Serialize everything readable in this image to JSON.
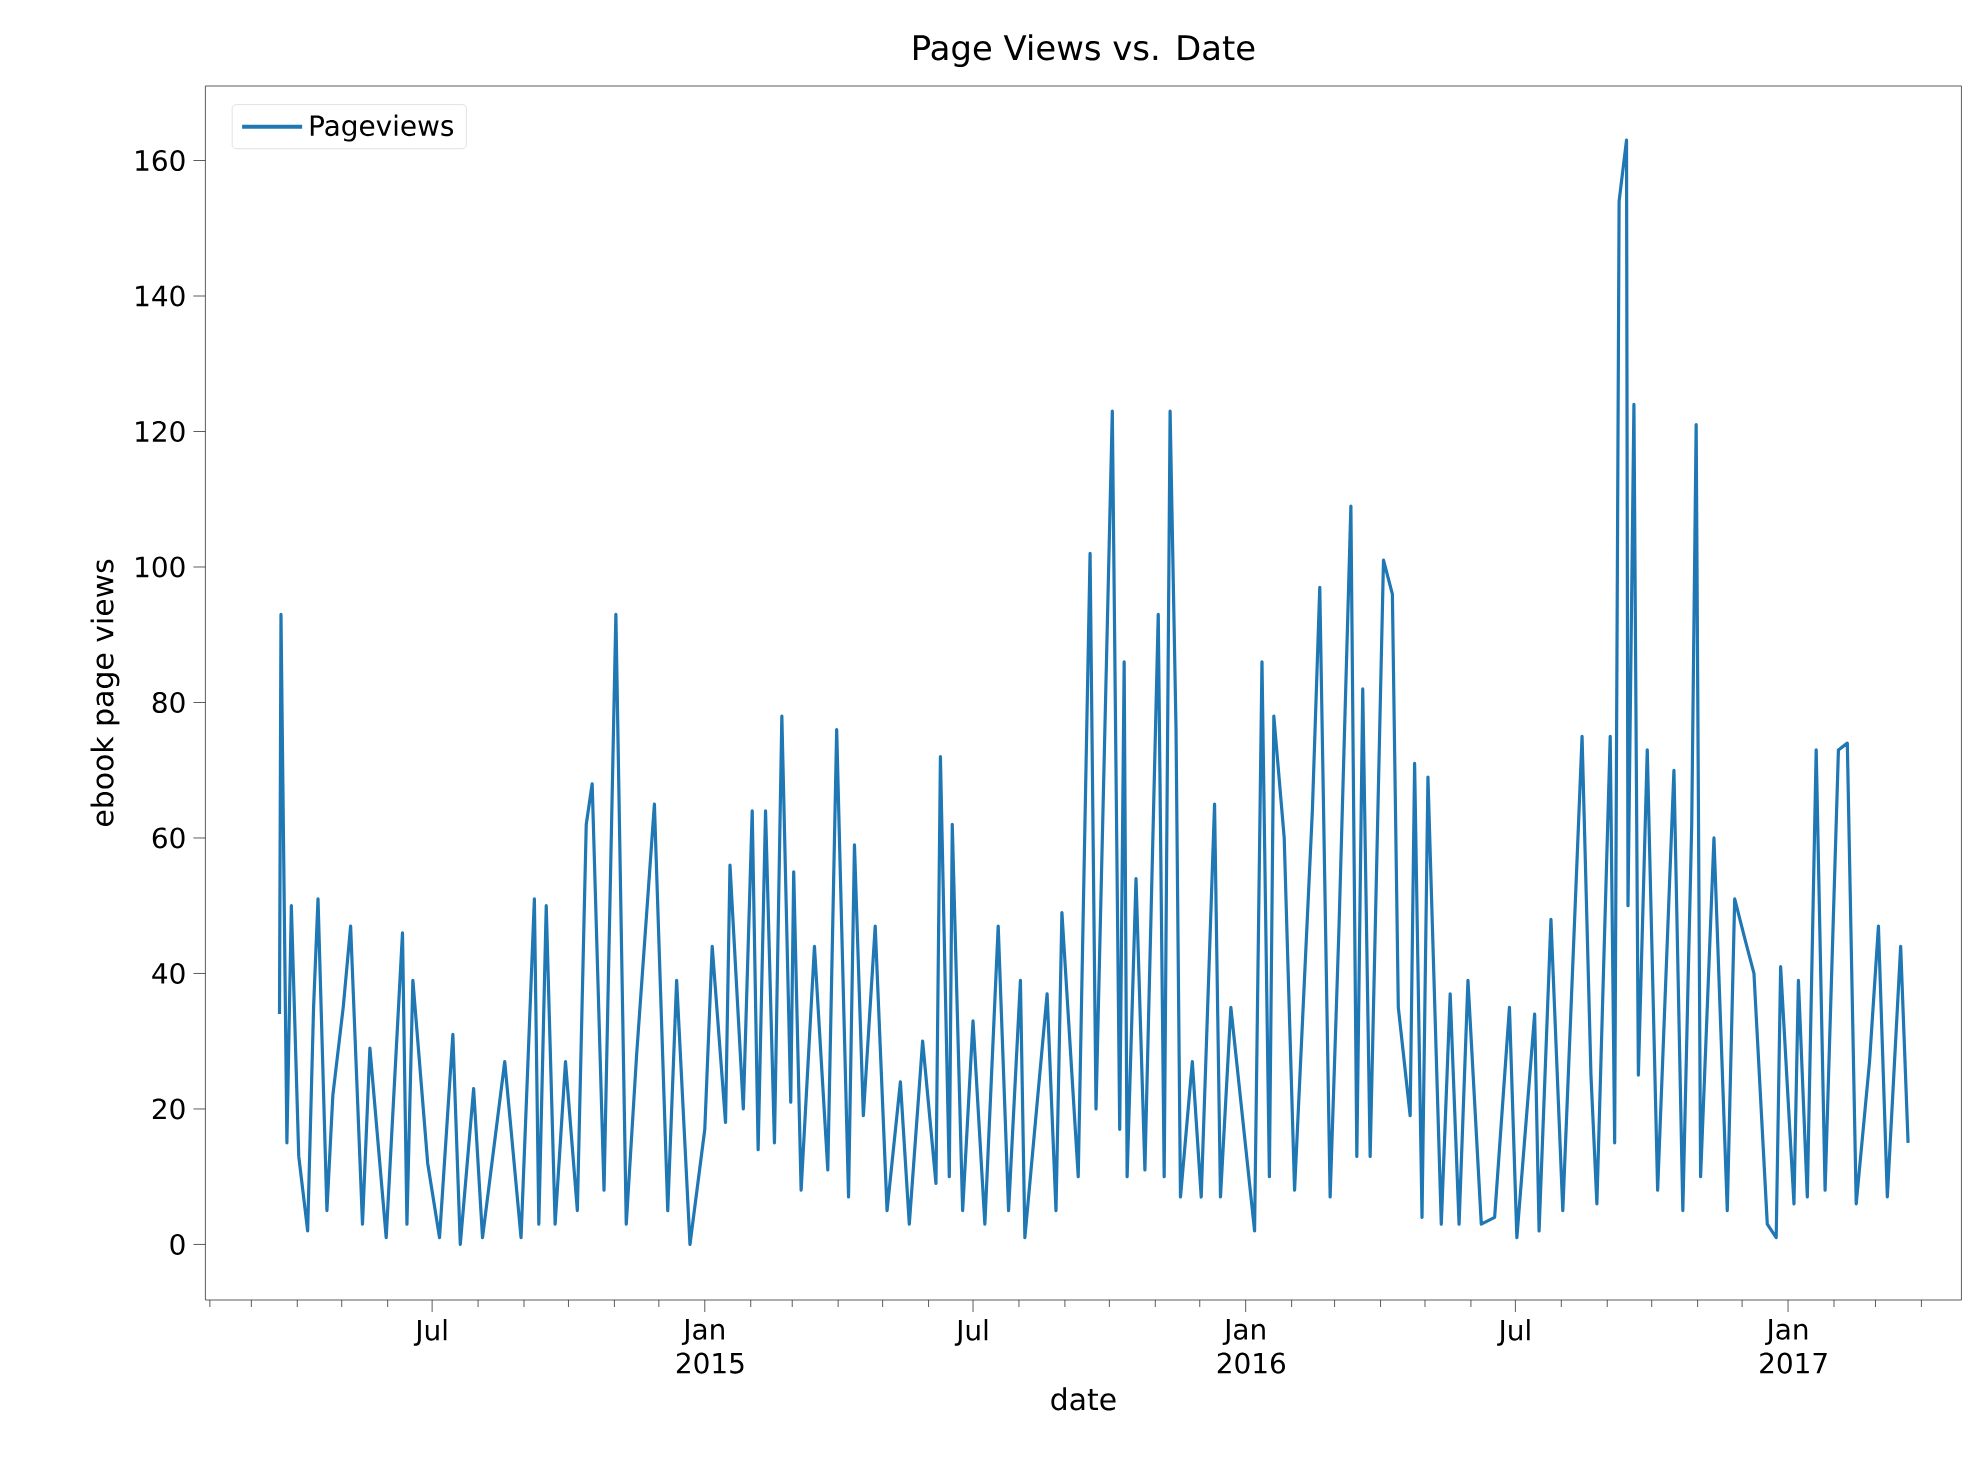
{
  "chart_data": {
    "type": "line",
    "title": "Page Views vs. Date",
    "xlabel": "date",
    "ylabel": "ebook page views",
    "legend": "top left",
    "line_style": "solid",
    "xlim": [
      "2014-01-29",
      "2017-04-28"
    ],
    "xticks": [
      {
        "value": "2014-02",
        "label": null
      },
      {
        "value": "2014-03",
        "label": null
      },
      {
        "value": "2014-04",
        "label": null
      },
      {
        "value": "2014-05",
        "label": null
      },
      {
        "value": "2014-06",
        "label": null
      },
      {
        "value": "2014-07",
        "label": "Jul"
      },
      {
        "value": "2014-08",
        "label": null
      },
      {
        "value": "2014-09",
        "label": null
      },
      {
        "value": "2014-10",
        "label": null
      },
      {
        "value": "2014-11",
        "label": null
      },
      {
        "value": "2014-12",
        "label": null
      },
      {
        "value": "2015-01",
        "label": "Jan 2015"
      },
      {
        "value": "2015-02",
        "label": null
      },
      {
        "value": "2015-03",
        "label": null
      },
      {
        "value": "2015-04",
        "label": null
      },
      {
        "value": "2015-05",
        "label": null
      },
      {
        "value": "2015-06",
        "label": null
      },
      {
        "value": "2015-07",
        "label": "Jul"
      },
      {
        "value": "2015-08",
        "label": null
      },
      {
        "value": "2015-09",
        "label": null
      },
      {
        "value": "2015-10",
        "label": null
      },
      {
        "value": "2015-11",
        "label": null
      },
      {
        "value": "2015-12",
        "label": null
      },
      {
        "value": "2016-01",
        "label": "Jan 2016"
      },
      {
        "value": "2016-02",
        "label": null
      },
      {
        "value": "2016-03",
        "label": null
      },
      {
        "value": "2016-04",
        "label": null
      },
      {
        "value": "2016-05",
        "label": null
      },
      {
        "value": "2016-06",
        "label": null
      },
      {
        "value": "2016-07",
        "label": "Jul"
      },
      {
        "value": "2016-08",
        "label": null
      },
      {
        "value": "2016-09",
        "label": null
      },
      {
        "value": "2016-10",
        "label": null
      },
      {
        "value": "2016-11",
        "label": null
      },
      {
        "value": "2016-12",
        "label": null
      },
      {
        "value": "2017-01",
        "label": "Jan 2017"
      },
      {
        "value": "2017-02",
        "label": null
      },
      {
        "value": "2017-03",
        "label": null
      },
      {
        "value": "2017-04",
        "label": null
      }
    ],
    "ylim": [
      -8.2,
      171
    ],
    "yticks": [
      0,
      20,
      40,
      60,
      80,
      100,
      120,
      140,
      160
    ],
    "x": [
      "2014-03-20",
      "2014-03-21",
      "2014-03-25",
      "2014-03-28",
      "2014-04-02",
      "2014-04-08",
      "2014-04-12",
      "2014-04-15",
      "2014-04-21",
      "2014-04-25",
      "2014-05-02",
      "2014-05-07",
      "2014-05-15",
      "2014-05-20",
      "2014-05-31",
      "2014-06-11",
      "2014-06-14",
      "2014-06-18",
      "2014-06-28",
      "2014-07-06",
      "2014-07-15",
      "2014-07-20",
      "2014-07-29",
      "2014-08-04",
      "2014-08-19",
      "2014-08-30",
      "2014-09-08",
      "2014-09-11",
      "2014-09-16",
      "2014-09-22",
      "2014-09-29",
      "2014-10-07",
      "2014-10-13",
      "2014-10-17",
      "2014-10-25",
      "2014-11-02",
      "2014-11-09",
      "2014-11-16",
      "2014-11-28",
      "2014-12-07",
      "2014-12-13",
      "2014-12-22",
      "2015-01-01",
      "2015-01-06",
      "2015-01-15",
      "2015-01-18",
      "2015-01-27",
      "2015-02-02",
      "2015-02-06",
      "2015-02-11",
      "2015-02-17",
      "2015-02-22",
      "2015-02-28",
      "2015-03-02",
      "2015-03-07",
      "2015-03-16",
      "2015-03-25",
      "2015-03-31",
      "2015-04-08",
      "2015-04-12",
      "2015-04-18",
      "2015-04-26",
      "2015-05-04",
      "2015-05-13",
      "2015-05-19",
      "2015-05-28",
      "2015-06-06",
      "2015-06-09",
      "2015-06-15",
      "2015-06-17",
      "2015-06-24",
      "2015-07-01",
      "2015-07-09",
      "2015-07-18",
      "2015-07-25",
      "2015-08-02",
      "2015-08-05",
      "2015-08-20",
      "2015-08-26",
      "2015-08-30",
      "2015-09-10",
      "2015-09-18",
      "2015-09-22",
      "2015-10-03",
      "2015-10-08",
      "2015-10-11",
      "2015-10-13",
      "2015-10-19",
      "2015-10-25",
      "2015-11-03",
      "2015-11-07",
      "2015-11-11",
      "2015-11-15",
      "2015-11-18",
      "2015-11-26",
      "2015-12-02",
      "2015-12-11",
      "2015-12-15",
      "2015-12-22",
      "2016-01-07",
      "2016-01-12",
      "2016-01-17",
      "2016-01-20",
      "2016-01-27",
      "2016-02-03",
      "2016-02-15",
      "2016-02-20",
      "2016-02-27",
      "2016-03-04",
      "2016-03-12",
      "2016-03-16",
      "2016-03-20",
      "2016-03-25",
      "2016-04-03",
      "2016-04-09",
      "2016-04-13",
      "2016-04-21",
      "2016-04-24",
      "2016-04-29",
      "2016-05-03",
      "2016-05-12",
      "2016-05-18",
      "2016-05-24",
      "2016-05-30",
      "2016-06-08",
      "2016-06-17",
      "2016-06-27",
      "2016-07-02",
      "2016-07-14",
      "2016-07-17",
      "2016-07-25",
      "2016-08-02",
      "2016-08-15",
      "2016-08-21",
      "2016-08-25",
      "2016-09-03",
      "2016-09-06",
      "2016-09-09",
      "2016-09-14",
      "2016-09-15",
      "2016-09-19",
      "2016-09-22",
      "2016-09-28",
      "2016-10-05",
      "2016-10-16",
      "2016-10-22",
      "2016-10-28",
      "2016-10-31",
      "2016-11-03",
      "2016-11-12",
      "2016-11-21",
      "2016-11-26",
      "2016-12-03",
      "2016-12-09",
      "2016-12-18",
      "2016-12-24",
      "2016-12-27",
      "2017-01-05",
      "2017-01-08",
      "2017-01-14",
      "2017-01-20",
      "2017-01-26",
      "2017-02-04",
      "2017-02-10",
      "2017-02-16",
      "2017-02-25",
      "2017-03-03",
      "2017-03-09",
      "2017-03-18",
      "2017-03-23"
    ],
    "series": [
      {
        "name": "Pageviews",
        "color": "#1f77b4",
        "values": [
          34,
          93,
          15,
          50,
          13,
          2,
          35,
          51,
          5,
          22,
          35,
          47,
          3,
          29,
          1,
          46,
          3,
          39,
          12,
          1,
          31,
          0,
          23,
          1,
          27,
          1,
          51,
          3,
          50,
          3,
          27,
          5,
          62,
          68,
          8,
          93,
          3,
          28,
          65,
          5,
          39,
          0,
          17,
          44,
          18,
          56,
          20,
          64,
          14,
          64,
          15,
          78,
          21,
          55,
          8,
          44,
          11,
          76,
          7,
          59,
          19,
          47,
          5,
          24,
          3,
          30,
          9,
          72,
          10,
          62,
          5,
          33,
          3,
          47,
          5,
          39,
          1,
          37,
          5,
          49,
          10,
          102,
          20,
          123,
          17,
          86,
          10,
          54,
          11,
          93,
          10,
          123,
          76,
          7,
          27,
          7,
          65,
          7,
          35,
          2,
          86,
          10,
          78,
          60,
          8,
          64,
          97,
          7,
          47,
          109,
          13,
          82,
          13,
          101,
          96,
          35,
          19,
          71,
          4,
          69,
          3,
          37,
          3,
          39,
          3,
          4,
          35,
          1,
          34,
          2,
          48,
          5,
          75,
          25,
          6,
          75,
          15,
          154,
          163,
          50,
          124,
          25,
          73,
          8,
          70,
          5,
          62,
          121,
          10,
          60,
          5,
          51,
          45,
          40,
          3,
          1,
          41,
          6,
          39,
          7,
          73,
          8,
          73,
          74,
          6,
          27,
          47,
          7,
          44,
          15
        ]
      }
    ]
  }
}
